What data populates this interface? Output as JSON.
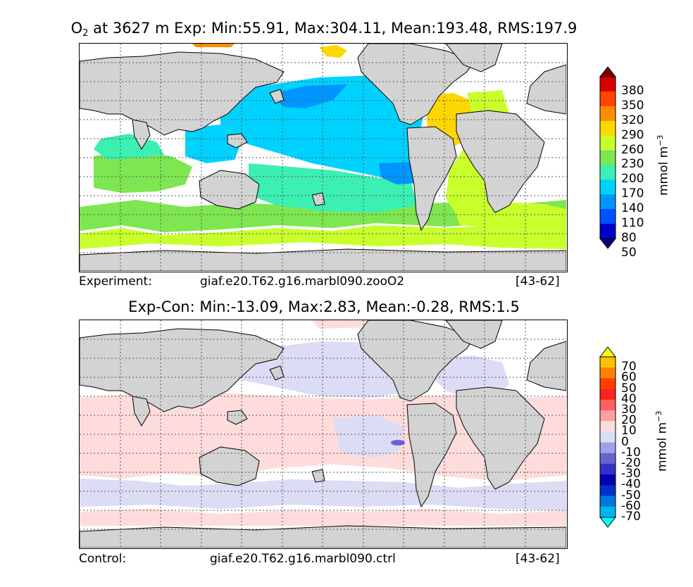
{
  "panel1": {
    "title_var": "O",
    "title_sub": "2",
    "title_rest": " at 3627 m Exp: Min:55.91, Max:304.11, Mean:193.48, RMS:197.9",
    "caption_left": "Experiment:",
    "caption_case": "giaf.e20.T62.g16.marbl090.zooO2",
    "caption_years": "[43-62]",
    "units": "mmol m",
    "units_sup": "−3",
    "colorbar": {
      "labels": [
        "380",
        "350",
        "320",
        "290",
        "260",
        "230",
        "200",
        "170",
        "140",
        "110",
        "80",
        "50"
      ],
      "colors": [
        "#7a0000",
        "#d90000",
        "#ff4500",
        "#ff8c00",
        "#ffd700",
        "#c8ff2d",
        "#7de650",
        "#3cf0b4",
        "#00d2ff",
        "#0096ff",
        "#0050ff",
        "#0000c8",
        "#00007a"
      ]
    }
  },
  "panel2": {
    "title": "Exp-Con: Min:-13.09, Max:2.83, Mean:-0.28, RMS:1.5",
    "caption_left": "Control:",
    "caption_case": "giaf.e20.T62.g16.marbl090.ctrl",
    "caption_years": "[43-62]",
    "units": "mmol m",
    "units_sup": "−3",
    "colorbar": {
      "labels": [
        "70",
        "60",
        "50",
        "40",
        "30",
        "20",
        "10",
        "0",
        "-10",
        "-20",
        "-30",
        "-40",
        "-50",
        "-60",
        "-70"
      ],
      "colors": [
        "#ffff00",
        "#ffc000",
        "#ff8000",
        "#ff4000",
        "#ff2020",
        "#ff6060",
        "#ffa0a0",
        "#ffdcdc",
        "#dcdcf5",
        "#a0a0e6",
        "#6464d2",
        "#3232c8",
        "#0000b4",
        "#0032c8",
        "#0078dc",
        "#00b4f0",
        "#00ffff"
      ]
    }
  },
  "chart_data": [
    {
      "type": "heatmap",
      "title": "O2 at 3627 m Exp: Min:55.91, Max:304.11, Mean:193.48, RMS:197.9",
      "variable": "O2",
      "depth": "3627 m",
      "stats": {
        "min": 55.91,
        "max": 304.11,
        "mean": 193.48,
        "rms": 197.9
      },
      "colorbar_levels": [
        50,
        80,
        110,
        140,
        170,
        200,
        230,
        260,
        290,
        320,
        350,
        380
      ],
      "units": "mmol m-3",
      "case": "giaf.e20.T62.g16.marbl090.zooO2",
      "years": "[43-62]"
    },
    {
      "type": "heatmap",
      "title": "Exp-Con: Min:-13.09, Max:2.83, Mean:-0.28, RMS:1.5",
      "stats": {
        "min": -13.09,
        "max": 2.83,
        "mean": -0.28,
        "rms": 1.5
      },
      "colorbar_levels": [
        -70,
        -60,
        -50,
        -40,
        -30,
        -20,
        -10,
        0,
        10,
        20,
        30,
        40,
        50,
        60,
        70
      ],
      "units": "mmol m-3",
      "case": "giaf.e20.T62.g16.marbl090.ctrl",
      "years": "[43-62]"
    }
  ]
}
